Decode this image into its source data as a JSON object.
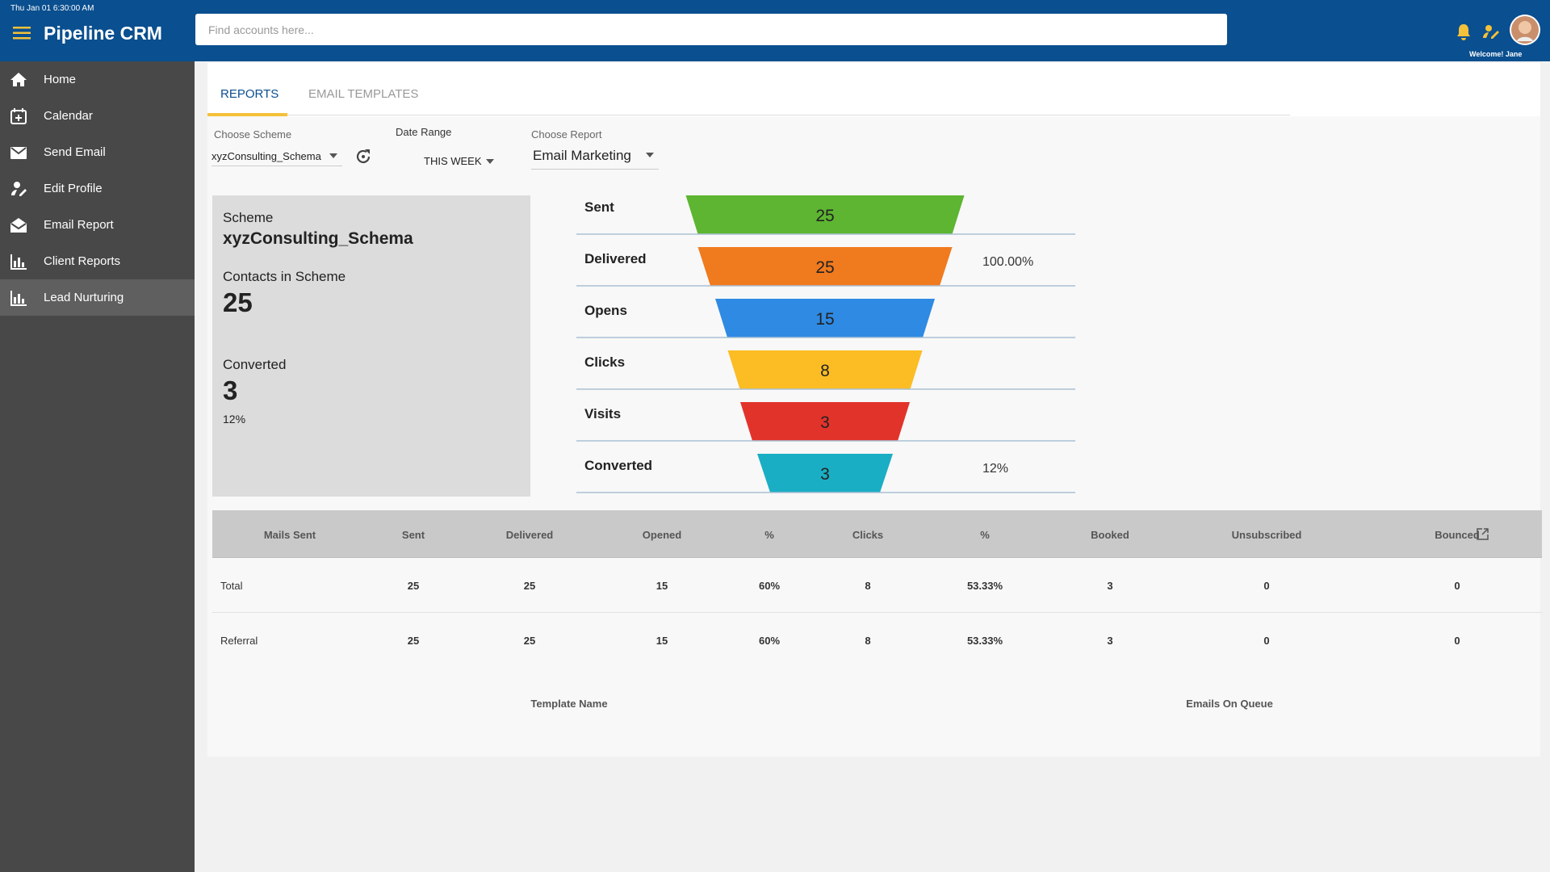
{
  "topbar": {
    "datetime": "Thu Jan 01 6:30:00 AM",
    "app_name": "Pipeline CRM",
    "search_placeholder": "Find accounts here...",
    "welcome": "Welcome! Jane"
  },
  "sidebar": {
    "items": [
      "Home",
      "Calendar",
      "Send Email",
      "Edit Profile",
      "Email Report",
      "Client Reports",
      "Lead Nurturing"
    ]
  },
  "tabs": [
    "REPORTS",
    "EMAIL TEMPLATES"
  ],
  "filters": {
    "scheme_label": "Choose Scheme",
    "scheme_value": "xyzConsulting_Schema",
    "date_label": "Date Range",
    "date_value": "THIS WEEK",
    "report_label": "Choose Report",
    "report_value": "Email Marketing"
  },
  "summary": {
    "scheme_label": "Scheme",
    "scheme_name": "xyzConsulting_Schema",
    "contacts_label": "Contacts in Scheme",
    "contacts": 25,
    "converted_label": "Converted",
    "converted": 3,
    "converted_rate": "12%"
  },
  "funnel": {
    "stages": [
      {
        "label": "Sent",
        "value": 25,
        "color": "#5db531"
      },
      {
        "label": "Delivered",
        "value": 25,
        "rate": "100.00%",
        "color": "#f07a1e"
      },
      {
        "label": "Opens",
        "value": 15,
        "color": "#2f8ae3"
      },
      {
        "label": "Clicks",
        "value": 8,
        "color": "#fbbd23"
      },
      {
        "label": "Visits",
        "value": 3,
        "color": "#e2332b"
      },
      {
        "label": "Converted",
        "value": 3,
        "rate": "12%",
        "color": "#1aaec4"
      }
    ]
  },
  "table": {
    "headers": [
      "Mails Sent",
      "Sent",
      "Delivered",
      "Opened",
      "%",
      "Clicks",
      "%",
      "Booked",
      "Unsubscribed",
      "Bounced"
    ],
    "rows": [
      [
        "Total",
        25,
        25,
        15,
        "60%",
        8,
        "53.33%",
        3,
        0,
        0
      ],
      [
        "Referral",
        25,
        25,
        15,
        "60%",
        8,
        "53.33%",
        3,
        0,
        0
      ]
    ]
  },
  "templates_table": {
    "headers": [
      "Template Name",
      "Emails On Queue"
    ]
  }
}
